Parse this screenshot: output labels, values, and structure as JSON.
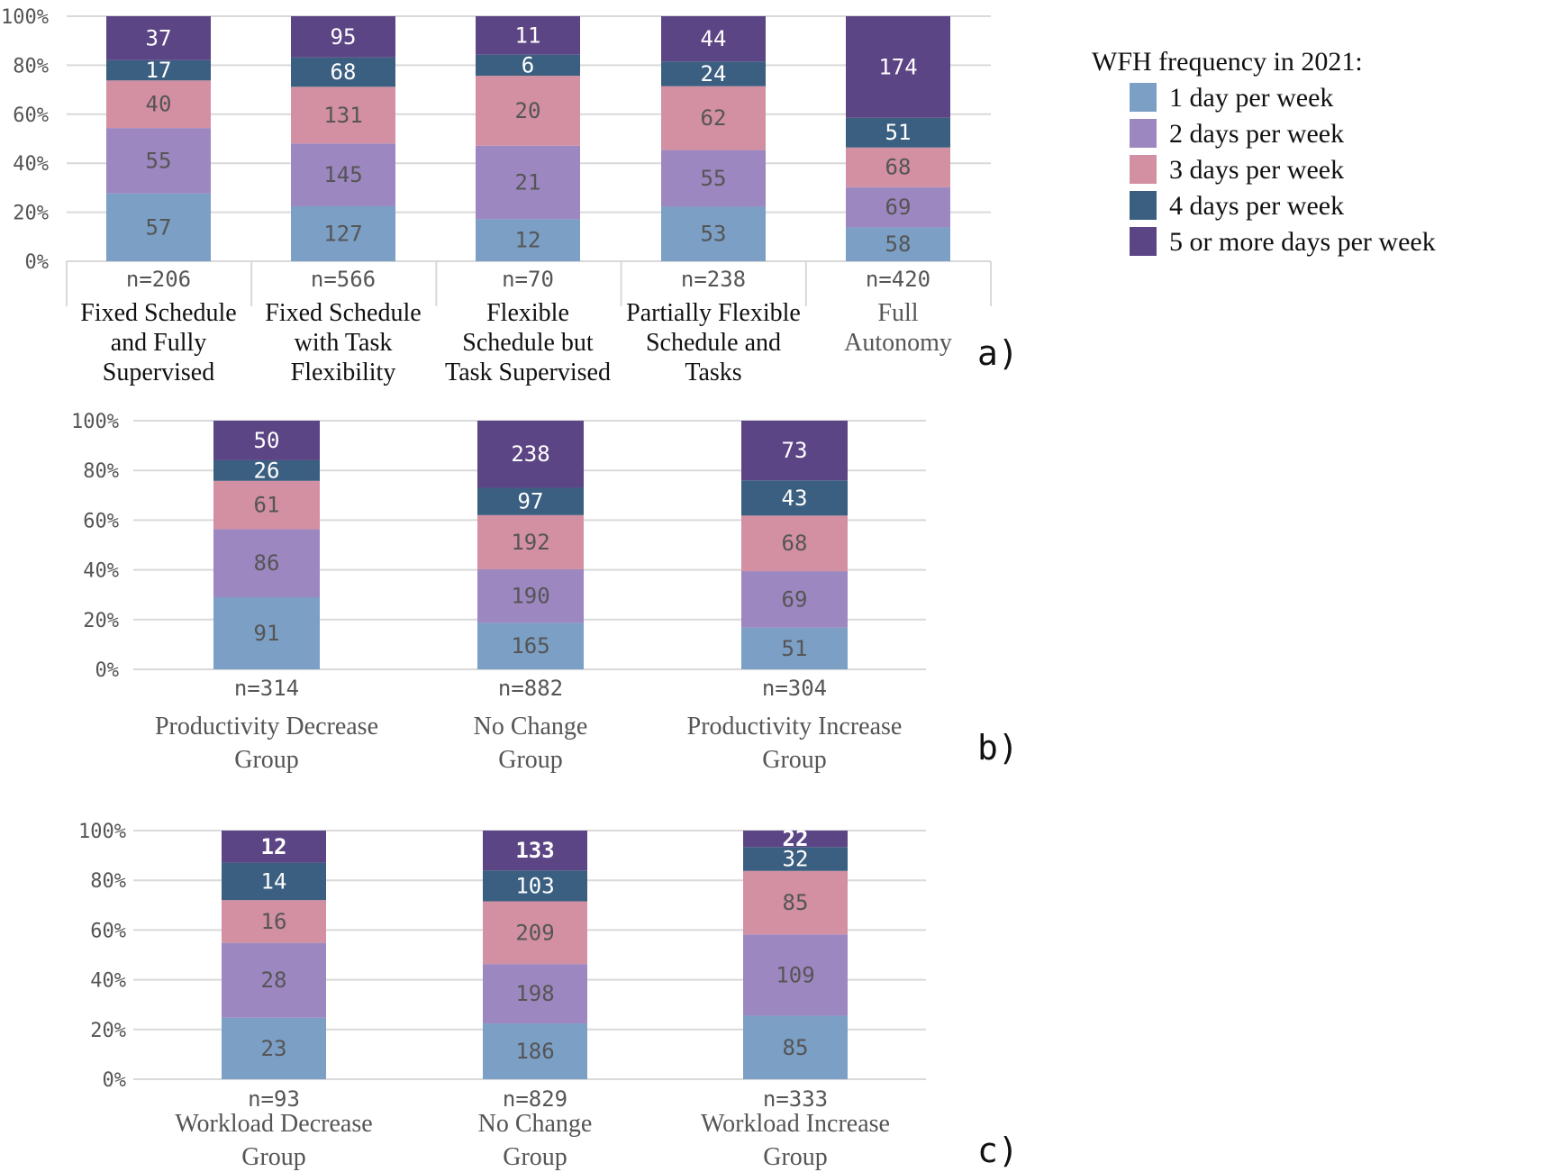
{
  "legend": {
    "title": "WFH frequency in 2021:",
    "items": [
      {
        "label": "1 day per week",
        "color": "#7b9fc5"
      },
      {
        "label": "2 days per week",
        "color": "#9d87c0"
      },
      {
        "label": "3 days per week",
        "color": "#d290a2"
      },
      {
        "label": "4 days per week",
        "color": "#3b5f80"
      },
      {
        "label": "5 or more days per week",
        "color": "#5c4585"
      }
    ]
  },
  "chart_data": [
    {
      "type": "bar",
      "stacked": "percent",
      "panel": "a)",
      "yticks": [
        "0%",
        "20%",
        "40%",
        "60%",
        "80%",
        "100%"
      ],
      "ylim": [
        0,
        100
      ],
      "categories": [
        {
          "n": "n=206",
          "name": [
            "Fixed Schedule",
            "and Fully",
            "Supervised"
          ]
        },
        {
          "n": "n=566",
          "name": [
            "Fixed Schedule",
            "with Task",
            "Flexibility"
          ]
        },
        {
          "n": "n=70",
          "name": [
            "Flexible",
            "Schedule but",
            "Task Supervised"
          ]
        },
        {
          "n": "n=238",
          "name": [
            "Partially Flexible",
            "Schedule and",
            "Tasks"
          ]
        },
        {
          "n": "n=420",
          "name": [
            "Full",
            "Autonomy"
          ]
        }
      ],
      "series": [
        {
          "name": "1 day per week",
          "values": [
            57,
            127,
            12,
            53,
            58
          ]
        },
        {
          "name": "2 days per week",
          "values": [
            55,
            145,
            21,
            55,
            69
          ]
        },
        {
          "name": "3 days per week",
          "values": [
            40,
            131,
            20,
            62,
            68
          ]
        },
        {
          "name": "4 days per week",
          "values": [
            17,
            68,
            6,
            24,
            51
          ]
        },
        {
          "name": "5 or more days per week",
          "values": [
            37,
            95,
            11,
            44,
            174
          ]
        }
      ]
    },
    {
      "type": "bar",
      "stacked": "percent",
      "panel": "b)",
      "yticks": [
        "0%",
        "20%",
        "40%",
        "60%",
        "80%",
        "100%"
      ],
      "ylim": [
        0,
        100
      ],
      "categories": [
        {
          "n": "n=314",
          "name": [
            "Productivity Decrease",
            "Group"
          ]
        },
        {
          "n": "n=882",
          "name": [
            "No Change",
            "Group"
          ]
        },
        {
          "n": "n=304",
          "name": [
            "Productivity Increase",
            "Group"
          ]
        }
      ],
      "series": [
        {
          "name": "1 day per week",
          "values": [
            91,
            165,
            51
          ]
        },
        {
          "name": "2 days per week",
          "values": [
            86,
            190,
            69
          ]
        },
        {
          "name": "3 days per week",
          "values": [
            61,
            192,
            68
          ]
        },
        {
          "name": "4 days per week",
          "values": [
            26,
            97,
            43
          ]
        },
        {
          "name": "5 or more days per week",
          "values": [
            50,
            238,
            73
          ]
        }
      ]
    },
    {
      "type": "bar",
      "stacked": "percent",
      "panel": "c)",
      "yticks": [
        "0%",
        "20%",
        "40%",
        "60%",
        "80%",
        "100%"
      ],
      "ylim": [
        0,
        100
      ],
      "categories": [
        {
          "n": "n=93",
          "name": [
            "Workload Decrease",
            "Group"
          ]
        },
        {
          "n": "n=829",
          "name": [
            "No Change",
            "Group"
          ]
        },
        {
          "n": "n=333",
          "name": [
            "Workload Increase",
            "Group"
          ]
        }
      ],
      "series": [
        {
          "name": "1 day per week",
          "values": [
            23,
            186,
            85
          ]
        },
        {
          "name": "2 days per week",
          "values": [
            28,
            198,
            109
          ]
        },
        {
          "name": "3 days per week",
          "values": [
            16,
            209,
            85
          ]
        },
        {
          "name": "4 days per week",
          "values": [
            14,
            103,
            32
          ]
        },
        {
          "name": "5 or more days per week",
          "values": [
            12,
            133,
            22
          ]
        }
      ]
    }
  ]
}
